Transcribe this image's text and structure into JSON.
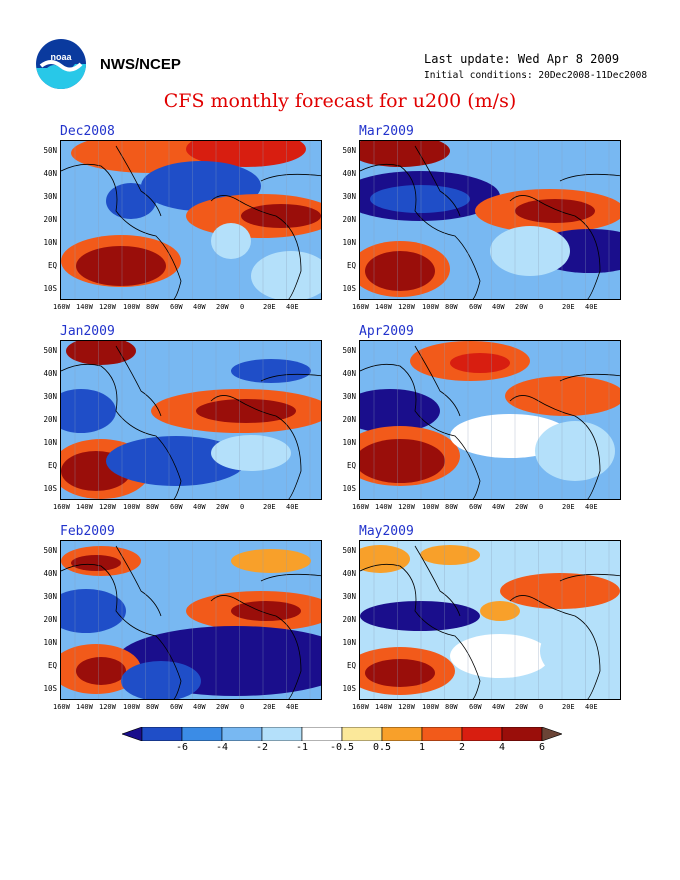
{
  "header": {
    "agency": "NWS/NCEP",
    "last_update": "Last update: Wed Apr 8 2009",
    "initial_conditions": "Initial conditions: 20Dec2008-11Dec2008",
    "title": "CFS monthly forecast for u200 (m/s)",
    "logo_text": "noaa"
  },
  "chart_data": {
    "type": "heatmap",
    "variable": "u200",
    "units": "m/s",
    "lat_ticks": [
      "50N",
      "40N",
      "30N",
      "20N",
      "10N",
      "EQ",
      "10S"
    ],
    "lon_ticks": [
      "160W",
      "140W",
      "120W",
      "100W",
      "80W",
      "60W",
      "40W",
      "20W",
      "0",
      "20E",
      "40E"
    ],
    "color_levels": [
      -6,
      -4,
      -2,
      -1,
      -0.5,
      0.5,
      1,
      2,
      4,
      6
    ],
    "color_level_labels": [
      "-6",
      "-4",
      "-2",
      "-1",
      "-0.5",
      "0.5",
      "1",
      "2",
      "4",
      "6"
    ],
    "colors": [
      "#1a0e8c",
      "#1f4ec8",
      "#3b8ce6",
      "#78b8f2",
      "#b4e0fa",
      "#ffffff",
      "#fbe89a",
      "#f8a02a",
      "#f25a1a",
      "#d81e10",
      "#9a0e0a",
      "#6b4436"
    ],
    "panels": [
      {
        "label": "Dec2008"
      },
      {
        "label": "Jan2009"
      },
      {
        "label": "Feb2009"
      },
      {
        "label": "Mar2009"
      },
      {
        "label": "Apr2009"
      },
      {
        "label": "May2009"
      }
    ]
  }
}
